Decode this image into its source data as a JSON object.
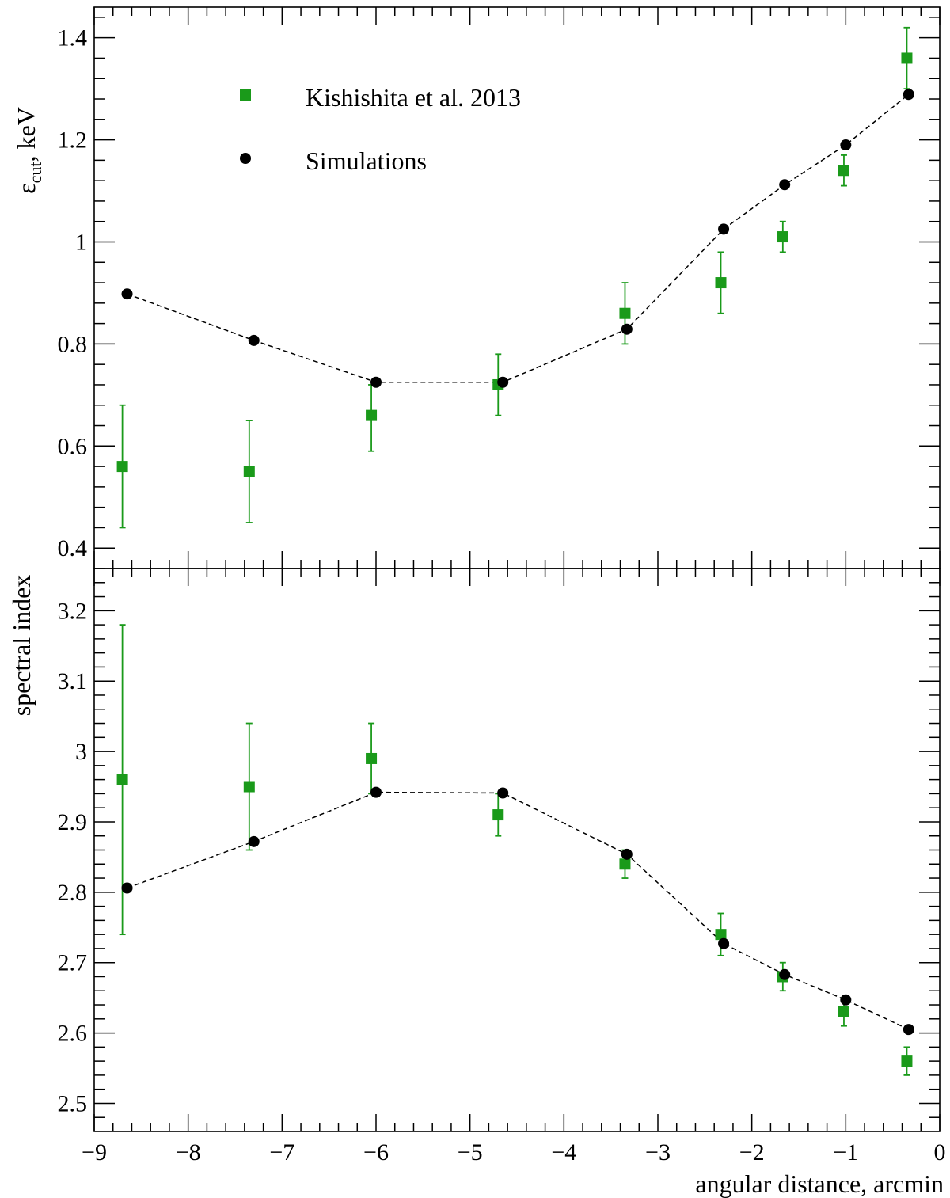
{
  "chart_data": [
    {
      "type": "scatter",
      "panel": "top",
      "ylabel_main": "ε",
      "ylabel_sub": "cut",
      "ylabel_rest": ", keV",
      "ylim": [
        0.36,
        1.46
      ],
      "xlim": [
        -9,
        0
      ],
      "yticks": [
        0.4,
        0.6,
        0.8,
        1,
        1.2,
        1.4
      ],
      "ytick_labels": [
        "0.4",
        "0.6",
        "0.8",
        "1",
        "1.2",
        "1.4"
      ],
      "legend": [
        {
          "name": "Kishishita et al. 2013",
          "marker": "square",
          "color": "#1a9a1a"
        },
        {
          "name": "Simulations",
          "marker": "circle",
          "color": "#000000"
        }
      ],
      "series": [
        {
          "name": "Kishishita et al. 2013",
          "marker": "square",
          "color": "#1a9a1a",
          "x": [
            -8.7,
            -7.35,
            -6.05,
            -4.7,
            -3.35,
            -2.33,
            -1.67,
            -1.02,
            -0.35
          ],
          "y": [
            0.56,
            0.55,
            0.66,
            0.72,
            0.86,
            0.92,
            1.01,
            1.14,
            1.36
          ],
          "yerr_low": [
            0.44,
            0.45,
            0.59,
            0.66,
            0.8,
            0.86,
            0.98,
            1.11,
            1.3
          ],
          "yerr_high": [
            0.68,
            0.65,
            0.72,
            0.78,
            0.92,
            0.98,
            1.04,
            1.17,
            1.42
          ]
        },
        {
          "name": "Simulations",
          "marker": "circle",
          "color": "#000000",
          "line": "dashed",
          "x": [
            -8.65,
            -7.3,
            -6.0,
            -4.65,
            -3.33,
            -2.3,
            -1.65,
            -1.0,
            -0.33
          ],
          "y": [
            0.898,
            0.807,
            0.725,
            0.725,
            0.829,
            1.025,
            1.112,
            1.19,
            1.289
          ]
        }
      ]
    },
    {
      "type": "scatter",
      "panel": "bottom",
      "ylabel": "spectral index",
      "xlabel": "angular distance, arcmin",
      "ylim": [
        2.46,
        3.26
      ],
      "xlim": [
        -9,
        0
      ],
      "yticks": [
        2.5,
        2.6,
        2.7,
        2.8,
        2.9,
        3,
        3.1,
        3.2
      ],
      "ytick_labels": [
        "2.5",
        "2.6",
        "2.7",
        "2.8",
        "2.9",
        "3",
        "3.1",
        "3.2"
      ],
      "xticks": [
        -9,
        -8,
        -7,
        -6,
        -5,
        -4,
        -3,
        -2,
        -1,
        0
      ],
      "xtick_labels": [
        "−9",
        "−8",
        "−7",
        "−6",
        "−5",
        "−4",
        "−3",
        "−2",
        "−1",
        "0"
      ],
      "series": [
        {
          "name": "Kishishita et al. 2013",
          "marker": "square",
          "color": "#1a9a1a",
          "x": [
            -8.7,
            -7.35,
            -6.05,
            -4.7,
            -3.35,
            -2.33,
            -1.67,
            -1.02,
            -0.35
          ],
          "y": [
            2.96,
            2.95,
            2.99,
            2.91,
            2.84,
            2.74,
            2.68,
            2.63,
            2.56
          ],
          "yerr_low": [
            2.74,
            2.86,
            2.94,
            2.88,
            2.82,
            2.71,
            2.66,
            2.61,
            2.54
          ],
          "yerr_high": [
            3.18,
            3.04,
            3.04,
            2.94,
            2.86,
            2.77,
            2.7,
            2.65,
            2.58
          ]
        },
        {
          "name": "Simulations",
          "marker": "circle",
          "color": "#000000",
          "line": "dashed",
          "x": [
            -8.65,
            -7.3,
            -6.0,
            -4.65,
            -3.33,
            -2.3,
            -1.65,
            -1.0,
            -0.33
          ],
          "y": [
            2.806,
            2.872,
            2.942,
            2.941,
            2.854,
            2.727,
            2.683,
            2.647,
            2.605
          ]
        }
      ]
    }
  ]
}
